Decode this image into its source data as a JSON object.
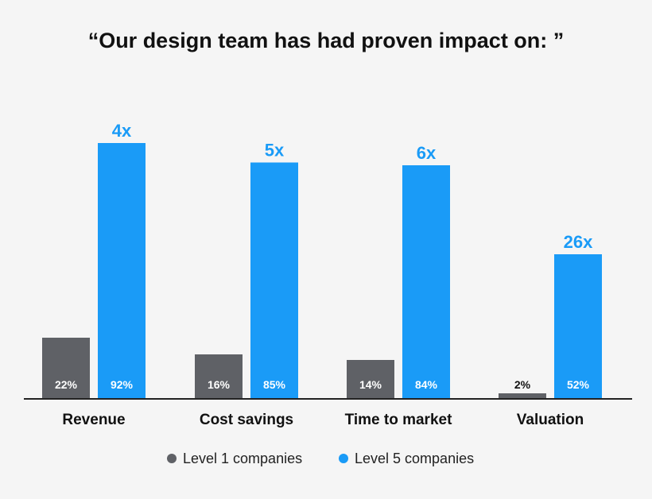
{
  "chart_data": {
    "type": "bar",
    "title": "“Our design team has had proven impact on: ”",
    "categories": [
      "Revenue",
      "Cost savings",
      "Time to market",
      "Valuation"
    ],
    "series": [
      {
        "name": "Level 1 companies",
        "values": [
          22,
          16,
          14,
          2
        ],
        "labels": [
          "22%",
          "16%",
          "14%",
          "2%"
        ],
        "color": "#5f6166"
      },
      {
        "name": "Level 5 companies",
        "values": [
          92,
          85,
          84,
          52
        ],
        "labels": [
          "92%",
          "85%",
          "84%",
          "52%"
        ],
        "color": "#1a9bf7"
      }
    ],
    "multipliers": [
      "4x",
      "5x",
      "6x",
      "26x"
    ],
    "ylim": [
      0,
      100
    ],
    "grid": false,
    "legend": "bottom"
  }
}
